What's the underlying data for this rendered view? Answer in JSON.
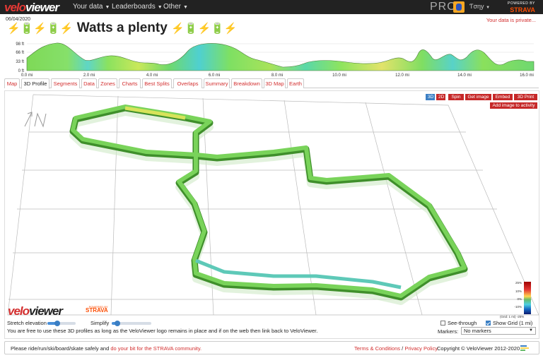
{
  "brand": {
    "logo_a": "velo",
    "logo_b": "viewer"
  },
  "nav": {
    "items": [
      {
        "label": "Your data"
      },
      {
        "label": "Leaderboards"
      },
      {
        "label": "Other"
      }
    ],
    "pro_label": "PRO",
    "user_name": "Ƭσηу",
    "strava_powered": "POWERED BY",
    "strava_label": "STRAVA"
  },
  "activity": {
    "date": "06/04/2020",
    "title": "Watts a plenty",
    "private_note": "Your data is private...",
    "title_icons": [
      "lightning-icon",
      "battery-icon",
      "lightning-icon",
      "battery-icon",
      "lightning-icon"
    ],
    "title_icons_after": [
      "lightning-icon",
      "battery-icon",
      "lightning-icon",
      "battery-icon",
      "lightning-icon"
    ]
  },
  "elevation_chart": {
    "y_ticks": [
      "98 ft",
      "66 ft",
      "33 ft",
      "0 ft"
    ],
    "x_ticks": [
      "0.0 mi",
      "2.0 mi",
      "4.0 mi",
      "6.0 mi",
      "8.0 mi",
      "10.0 mi",
      "12.0 mi",
      "14.0 mi",
      "16.0 mi"
    ]
  },
  "tabs": [
    {
      "label": "Map"
    },
    {
      "label": "3D Profile",
      "active": true
    },
    {
      "label": "Segments"
    },
    {
      "label": "Data"
    },
    {
      "label": "Zones"
    },
    {
      "label": "Charts"
    },
    {
      "label": "Best Splits"
    },
    {
      "label": "Overlaps"
    },
    {
      "label": "Summary"
    },
    {
      "label": "Breakdown"
    },
    {
      "label": "3D Map"
    },
    {
      "label": "Earth"
    }
  ],
  "toolbar": {
    "btn_3d": "3D",
    "btn_2d": "2D",
    "btn_spin": "Spin",
    "btn_getimage": "Get image",
    "btn_embed": "Embed",
    "btn_3dprint": "3D Print",
    "btn_addimage": "Add image to activity"
  },
  "viewer": {
    "watermark_a": "velo",
    "watermark_b": "viewer",
    "watermark_powered": "POWERED BY",
    "watermark_strava": "STRAVA",
    "legend_labels": [
      "25%",
      "10%",
      "0%",
      "-10%",
      "-25%"
    ],
    "grid_note": "(Grid: 1 mi) -25%"
  },
  "controls": {
    "stretch_label": "Stretch elevation",
    "stretch_value": 0.35,
    "simplify_label": "Simplify",
    "simplify_value": 0.15,
    "usage_note": "You are free to use these 3D profiles as long as the VeloViewer logo remains in place and if on the web then link back to VeloViewer.",
    "see_through_label": "See-through",
    "see_through_checked": false,
    "show_grid_label": "Show Grid (1 mi)",
    "show_grid_checked": true,
    "markers_label": "Markers:",
    "markers_value": "No markers"
  },
  "footer": {
    "safety_text": "Please ride/run/ski/board/skate safely and",
    "safety_link": "do your bit for the STRAVA community.",
    "terms_link": "Terms & Conditions",
    "separator": "/",
    "privacy_link": "Privacy Policy",
    "copyright": "Copyright © VeloViewer 2012-2020"
  }
}
